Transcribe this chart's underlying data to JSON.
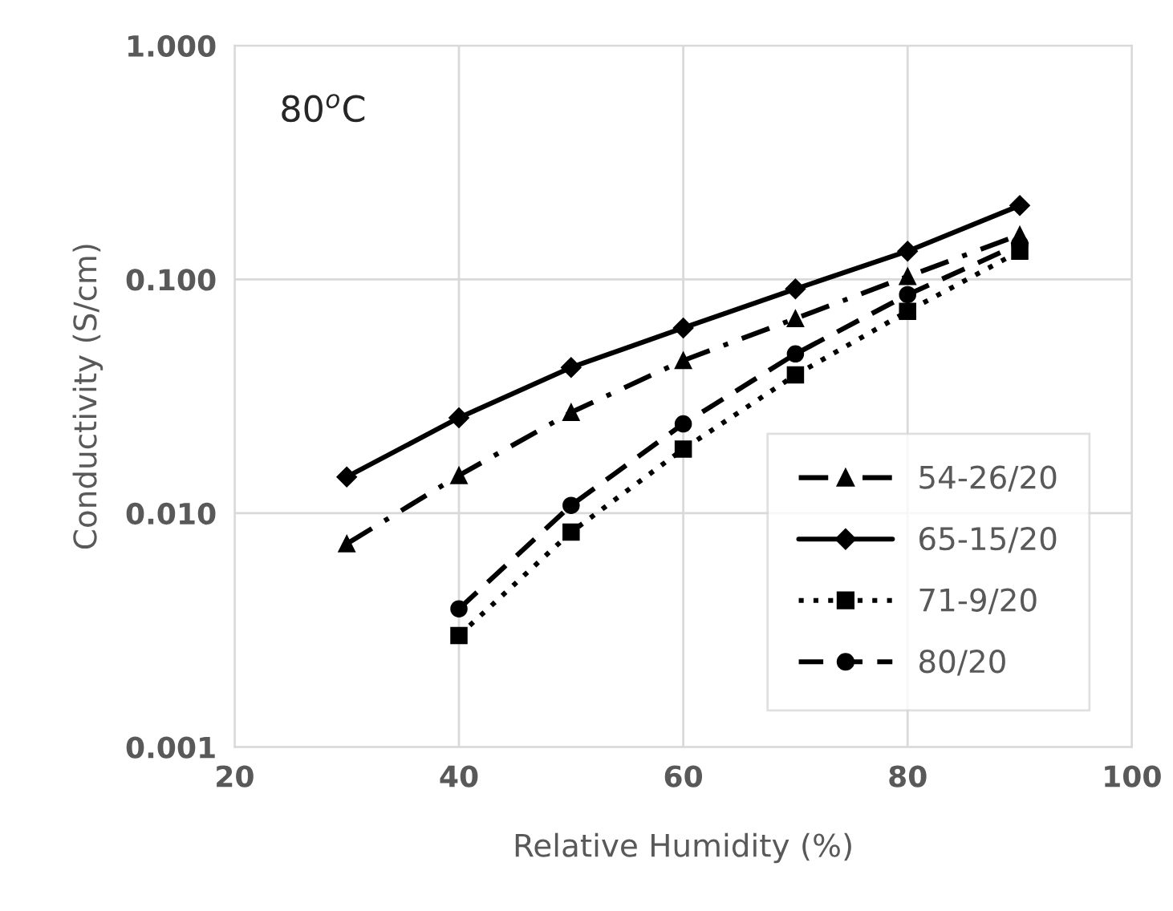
{
  "chart_data": {
    "type": "line",
    "xlabel": "Relative Humidity (%)",
    "ylabel": "Conductivity (S/cm)",
    "annotations": [
      "80$^{o}$C"
    ],
    "log": "y",
    "grid": true,
    "legend": "bottom right",
    "xlim": [
      20,
      100
    ],
    "xticks": [
      20,
      40,
      60,
      80,
      100
    ],
    "ylim": [
      0.001,
      1
    ],
    "yticks": [
      {
        "value": 0.001,
        "label": "0.001"
      },
      {
        "value": 0.01,
        "label": "0.010"
      },
      {
        "value": 0.1,
        "label": "0.100"
      },
      {
        "value": 1,
        "label": "1.000"
      }
    ],
    "series": [
      {
        "name": "54-26/20",
        "color": "#000000",
        "marker": "triangle",
        "line_style": "dashdot",
        "x": [
          30,
          40,
          50,
          60,
          70,
          80,
          90
        ],
        "values": [
          0.0074,
          0.0145,
          0.027,
          0.045,
          0.068,
          0.103,
          0.155
        ]
      },
      {
        "name": "65-15/20",
        "color": "#000000",
        "marker": "diamond",
        "line_style": "solid",
        "x": [
          30,
          40,
          50,
          60,
          70,
          80,
          90
        ],
        "values": [
          0.0143,
          0.0256,
          0.042,
          0.062,
          0.091,
          0.132,
          0.207
        ]
      },
      {
        "name": "71-9/20",
        "color": "#000000",
        "marker": "square",
        "line_style": "dotted",
        "x": [
          40,
          50,
          60,
          70,
          80,
          90
        ],
        "values": [
          0.003,
          0.0083,
          0.0188,
          0.039,
          0.073,
          0.132
        ]
      },
      {
        "name": "80/20",
        "color": "#000000",
        "marker": "circle",
        "line_style": "dashed",
        "x": [
          40,
          50,
          60,
          70,
          80,
          90
        ],
        "values": [
          0.0039,
          0.0108,
          0.0241,
          0.048,
          0.086,
          0.142
        ]
      }
    ]
  }
}
